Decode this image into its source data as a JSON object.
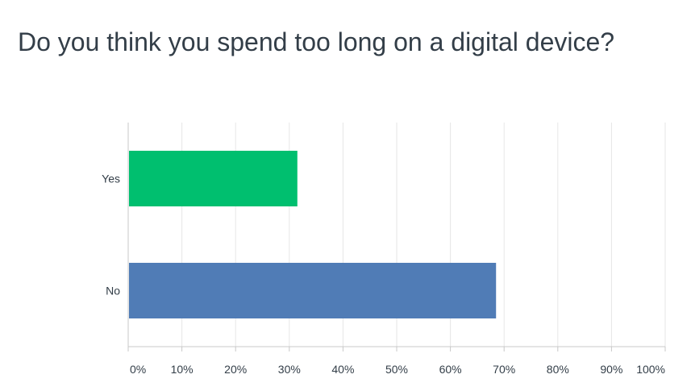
{
  "chart_data": {
    "type": "bar",
    "orientation": "horizontal",
    "title": "Do you think you spend too long on a digital device?",
    "categories": [
      "Yes",
      "No"
    ],
    "values": [
      31.5,
      68.5
    ],
    "value_unit": "%",
    "xlim": [
      0,
      100
    ],
    "x_ticks": [
      "0%",
      "10%",
      "20%",
      "30%",
      "40%",
      "50%",
      "60%",
      "70%",
      "80%",
      "90%",
      "100%"
    ],
    "bar_colors": [
      "#00bf6f",
      "#507cb6"
    ],
    "grid": true,
    "legend": "none"
  }
}
